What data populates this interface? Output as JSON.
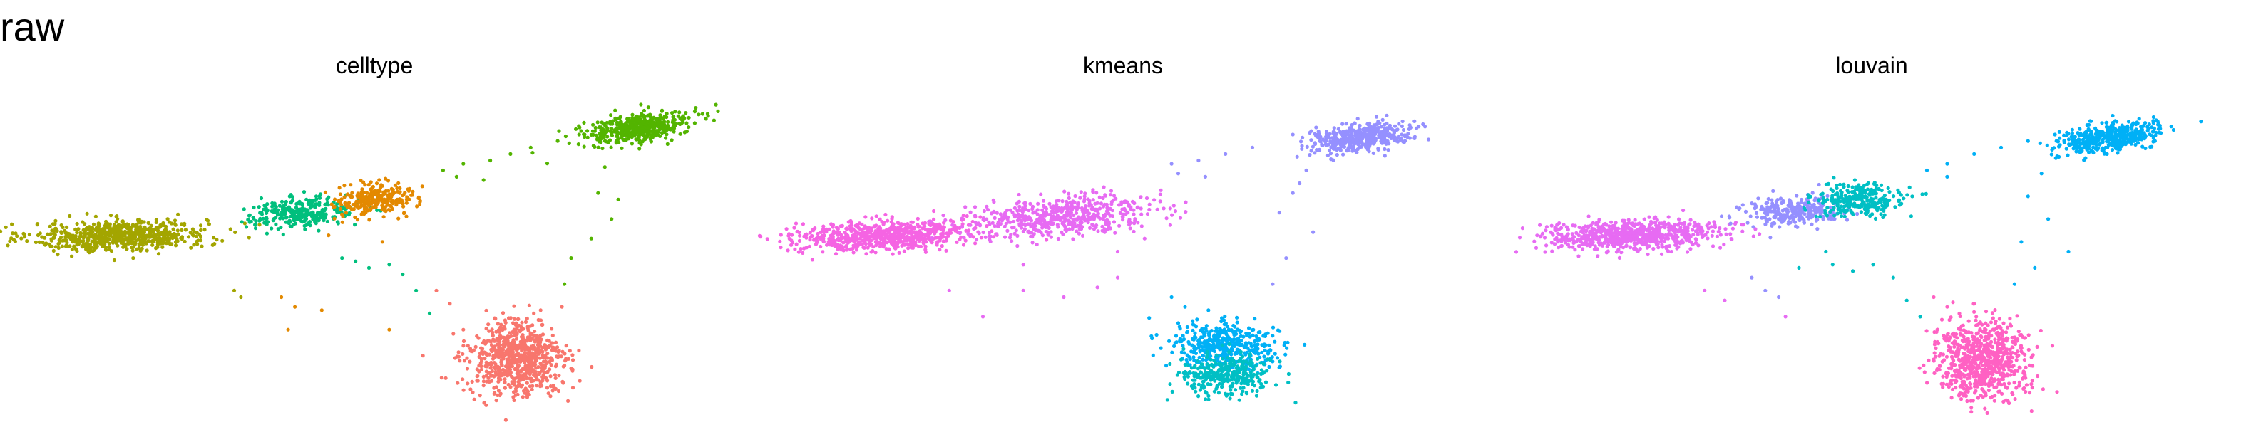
{
  "figure": {
    "title": "raw"
  },
  "chart_data": [
    {
      "type": "scatter",
      "title": "celltype",
      "xlabel": "",
      "ylabel": "",
      "axes": "none",
      "grid": false,
      "legend": "none",
      "xlim": [
        0,
        100
      ],
      "ylim": [
        0,
        100
      ],
      "clusters": [
        {
          "color": "#A3A500",
          "center": [
            13,
            55
          ],
          "spread": [
            6.5,
            2.3
          ],
          "n": 700,
          "rot": 4
        },
        {
          "color": "#00BF7D",
          "center": [
            40,
            62
          ],
          "spread": [
            4.0,
            2.2
          ],
          "n": 300,
          "rot": 10
        },
        {
          "color": "#E38900",
          "center": [
            51,
            66
          ],
          "spread": [
            3.0,
            2.4
          ],
          "n": 260,
          "rot": 15
        },
        {
          "color": "#53B400",
          "center": [
            90,
            88
          ],
          "spread": [
            4.2,
            2.0
          ],
          "n": 480,
          "rot": 20
        },
        {
          "color": "#F8766D",
          "center": [
            72,
            17
          ],
          "spread": [
            3.5,
            5.8
          ],
          "n": 750,
          "rot": 0
        }
      ],
      "stragglers": [
        {
          "color": "#53B400",
          "points": [
            [
              61,
              75
            ],
            [
              64,
              77
            ],
            [
              68,
              78
            ],
            [
              71,
              80
            ],
            [
              74,
              82
            ],
            [
              78,
              84
            ],
            [
              82,
              86
            ],
            [
              85,
              76
            ],
            [
              84,
              68
            ],
            [
              86,
              60
            ],
            [
              83,
              54
            ],
            [
              79,
              40
            ],
            [
              87,
              66
            ],
            [
              80,
              48
            ],
            [
              63,
              73
            ],
            [
              67,
              72
            ]
          ]
        },
        {
          "color": "#00BF7D",
          "points": [
            [
              48,
              47
            ],
            [
              50,
              45
            ],
            [
              53,
              46
            ],
            [
              46,
              48
            ],
            [
              57,
              38
            ],
            [
              59,
              31
            ],
            [
              55,
              43
            ]
          ]
        },
        {
          "color": "#A3A500",
          "points": [
            [
              30,
              38
            ],
            [
              31,
              36
            ],
            [
              15,
              48
            ]
          ]
        },
        {
          "color": "#E38900",
          "points": [
            [
              37,
              36
            ],
            [
              39,
              33
            ],
            [
              43,
              32
            ],
            [
              38,
              26
            ],
            [
              53,
              26
            ],
            [
              52,
              53
            ],
            [
              44,
              55
            ]
          ]
        },
        {
          "color": "#F8766D",
          "points": [
            [
              60,
              38
            ],
            [
              62,
              34
            ],
            [
              58,
              18
            ],
            [
              64,
              26
            ],
            [
              66,
              24
            ]
          ]
        }
      ]
    },
    {
      "type": "scatter",
      "title": "kmeans",
      "xlabel": "",
      "ylabel": "",
      "axes": "none",
      "grid": false,
      "legend": "none",
      "xlim": [
        0,
        100
      ],
      "ylim": [
        0,
        100
      ],
      "clusters": [
        {
          "color": "#F564E3",
          "center": [
            15,
            55
          ],
          "spread": [
            6.5,
            2.3
          ],
          "n": 700,
          "rot": 4
        },
        {
          "color": "#E76BF3",
          "center": [
            42,
            61
          ],
          "spread": [
            7.0,
            2.8
          ],
          "n": 560,
          "rot": 12
        },
        {
          "color": "#9590FF",
          "center": [
            86,
            85
          ],
          "spread": [
            4.0,
            1.9
          ],
          "n": 470,
          "rot": 20
        },
        {
          "color": "#00B0F6",
          "center": [
            66,
            21
          ],
          "spread": [
            3.8,
            3.5
          ],
          "n": 420,
          "rot": 0
        },
        {
          "color": "#00BFC4",
          "center": [
            66,
            12
          ],
          "spread": [
            3.3,
            3.2
          ],
          "n": 330,
          "rot": 0
        }
      ],
      "stragglers": [
        {
          "color": "#9590FF",
          "points": [
            [
              58,
              77
            ],
            [
              62,
              78
            ],
            [
              66,
              80
            ],
            [
              70,
              82
            ],
            [
              76,
              86
            ],
            [
              80,
              84
            ],
            [
              78,
              75
            ],
            [
              76,
              68
            ],
            [
              74,
              62
            ],
            [
              79,
              56
            ],
            [
              75,
              48
            ],
            [
              73,
              40
            ],
            [
              77,
              71
            ],
            [
              59,
              74
            ],
            [
              63,
              73
            ]
          ]
        },
        {
          "color": "#E76BF3",
          "points": [
            [
              25,
              38
            ],
            [
              30,
              30
            ],
            [
              36,
              38
            ],
            [
              42,
              36
            ],
            [
              47,
              39
            ],
            [
              50,
              42
            ],
            [
              36,
              46
            ],
            [
              50,
              50
            ],
            [
              54,
              54
            ]
          ]
        },
        {
          "color": "#00B0F6",
          "points": [
            [
              58,
              36
            ],
            [
              60,
              33
            ],
            [
              55,
              24
            ],
            [
              59,
              28
            ]
          ]
        }
      ]
    },
    {
      "type": "scatter",
      "title": "louvain",
      "xlabel": "",
      "ylabel": "",
      "axes": "none",
      "grid": false,
      "legend": "none",
      "xlim": [
        0,
        100
      ],
      "ylim": [
        0,
        100
      ],
      "clusters": [
        {
          "color": "#E76BF3",
          "center": [
            15,
            55
          ],
          "spread": [
            6.5,
            2.3
          ],
          "n": 700,
          "rot": 4
        },
        {
          "color": "#9590FF",
          "center": [
            39,
            62
          ],
          "spread": [
            3.6,
            2.2
          ],
          "n": 280,
          "rot": 10
        },
        {
          "color": "#00BFC4",
          "center": [
            49,
            66
          ],
          "spread": [
            3.4,
            2.5
          ],
          "n": 280,
          "rot": 15
        },
        {
          "color": "#00B0F6",
          "center": [
            86,
            85
          ],
          "spread": [
            4.0,
            1.9
          ],
          "n": 470,
          "rot": 20
        },
        {
          "color": "#FF61C3",
          "center": [
            67,
            17
          ],
          "spread": [
            3.4,
            5.8
          ],
          "n": 750,
          "rot": 0
        }
      ],
      "stragglers": [
        {
          "color": "#00B0F6",
          "points": [
            [
              59,
              75
            ],
            [
              62,
              77
            ],
            [
              66,
              80
            ],
            [
              70,
              82
            ],
            [
              74,
              84
            ],
            [
              78,
              86
            ],
            [
              76,
              74
            ],
            [
              74,
              67
            ],
            [
              77,
              60
            ],
            [
              73,
              53
            ],
            [
              75,
              45
            ],
            [
              80,
              50
            ],
            [
              72,
              40
            ],
            [
              62,
              73
            ]
          ]
        },
        {
          "color": "#00BFC4",
          "points": [
            [
              45,
              46
            ],
            [
              48,
              44
            ],
            [
              51,
              46
            ],
            [
              54,
              42
            ],
            [
              56,
              35
            ],
            [
              58,
              30
            ],
            [
              44,
              50
            ],
            [
              40,
              45
            ]
          ]
        },
        {
          "color": "#9590FF",
          "points": [
            [
              33,
              42
            ],
            [
              35,
              38
            ],
            [
              37,
              36
            ]
          ]
        },
        {
          "color": "#E76BF3",
          "points": [
            [
              26,
              38
            ],
            [
              29,
              35
            ],
            [
              38,
              30
            ]
          ]
        },
        {
          "color": "#FF61C3",
          "points": [
            [
              60,
              36
            ],
            [
              62,
              33
            ],
            [
              64,
              26
            ]
          ]
        }
      ]
    }
  ]
}
